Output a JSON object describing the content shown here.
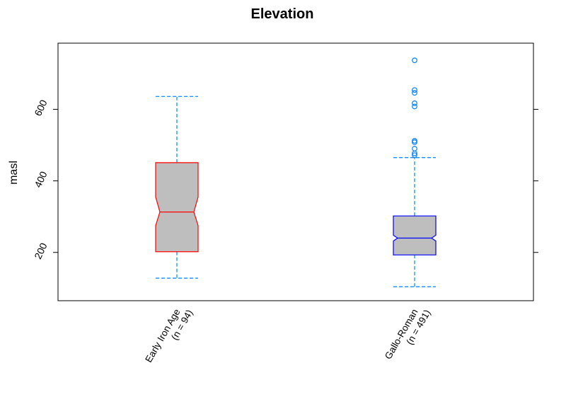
{
  "chart_data": {
    "type": "boxplot",
    "title": "Elevation",
    "xlabel": "",
    "ylabel": "masl",
    "ylim": [
      65,
      785
    ],
    "yticks": [
      200,
      400,
      600
    ],
    "notched": true,
    "grid": false,
    "series": [
      {
        "category": "Early Iron Age",
        "n_label": "(n = 94)",
        "whisker_low": 128,
        "q1": 202,
        "median": 313,
        "q3": 451,
        "whisker_high": 636,
        "notch_low": 275,
        "notch_high": 355,
        "outliers": [],
        "box_color": "#ff0000"
      },
      {
        "category": "Gallo-Roman",
        "n_label": "(n = 491)",
        "whisker_low": 104,
        "q1": 193,
        "median": 240,
        "q3": 302,
        "whisker_high": 465,
        "notch_low": 232,
        "notch_high": 248,
        "outliers": [
          472,
          477,
          490,
          508,
          512,
          608,
          617,
          646,
          654,
          737
        ],
        "box_color": "#0000ff"
      }
    ],
    "fill_color": "#bebebe",
    "whisker_color": "#0080ff"
  }
}
